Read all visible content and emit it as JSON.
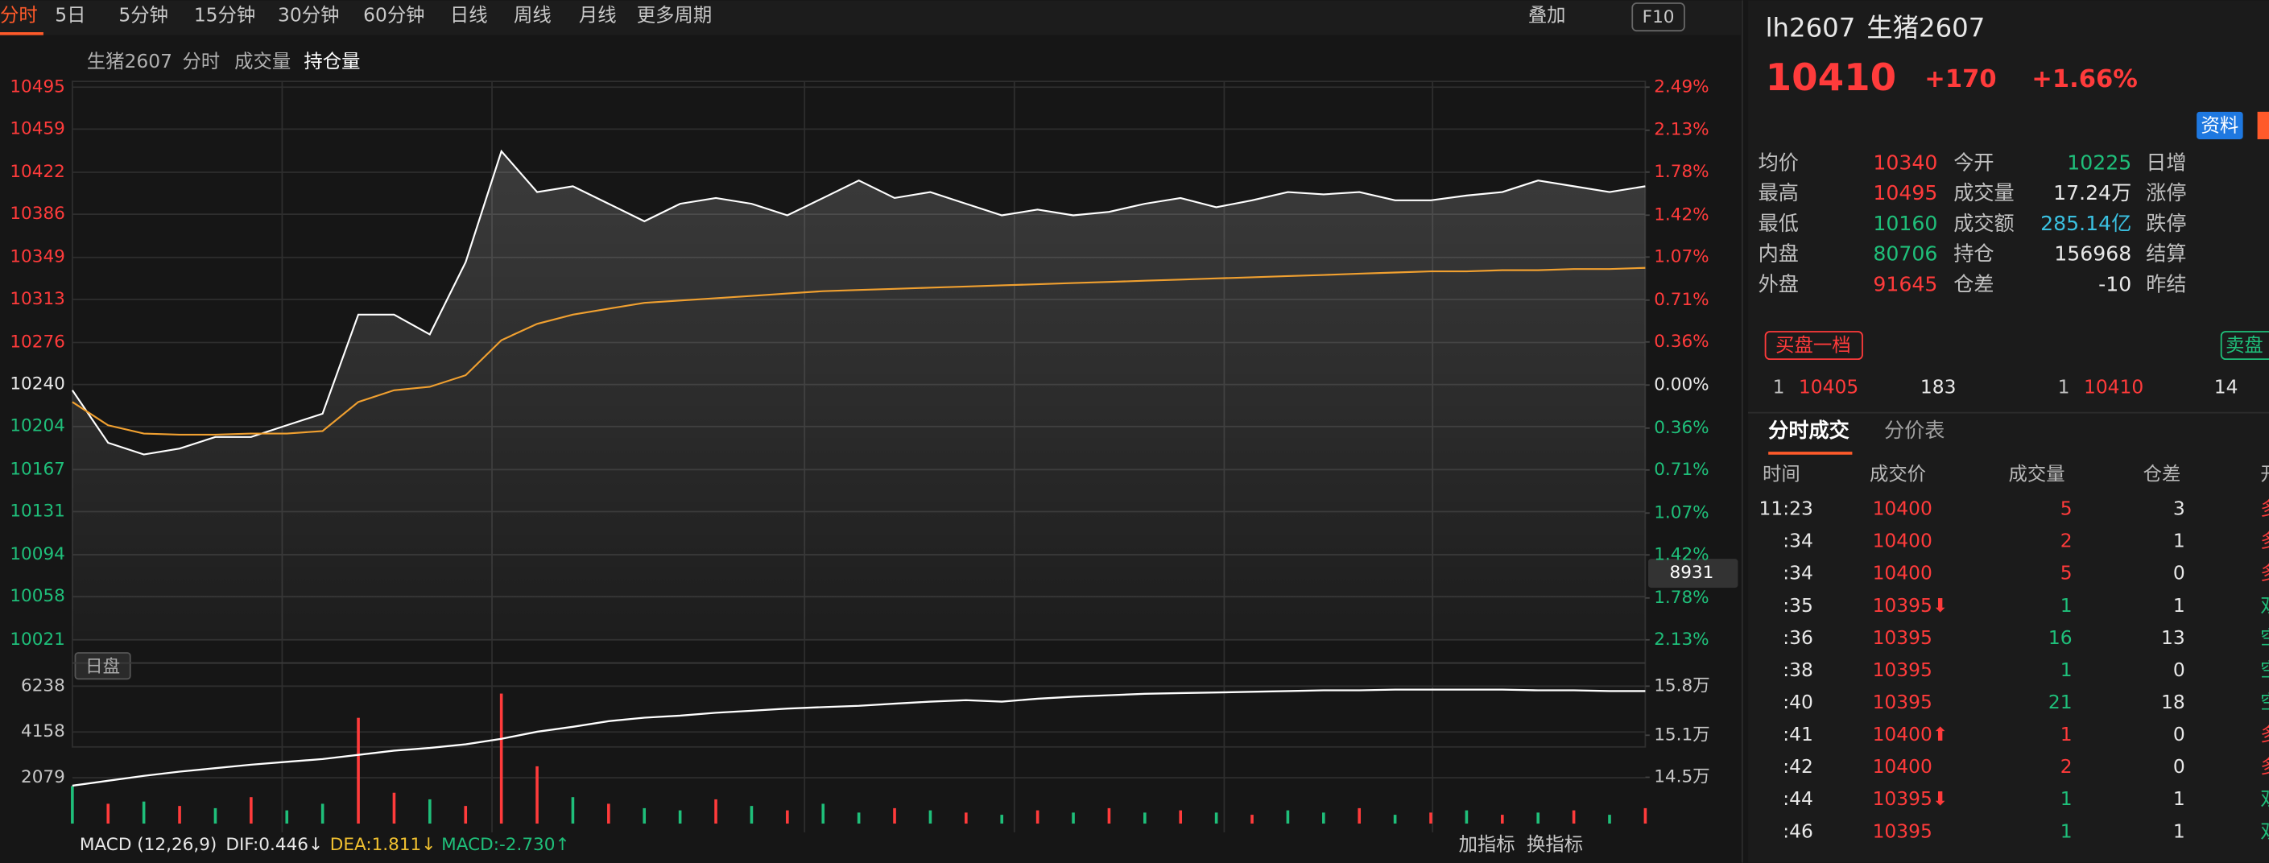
{
  "toolbar": {
    "active": "分时",
    "items": [
      "5日",
      "5分钟",
      "15分钟",
      "30分钟",
      "60分钟",
      "日线",
      "周线",
      "月线",
      "更多周期"
    ],
    "overlay": "叠加",
    "f10": "F10"
  },
  "chart_header": [
    "生猪2607",
    "分时",
    "成交量",
    "持仓量"
  ],
  "session_label": "日盘",
  "crosshair_value": "8931",
  "macd": {
    "name": "MACD (12,26,9)",
    "dif": "DIF:0.446↓",
    "dea": "DEA:1.811↓",
    "macd": "MACD:-2.730↑"
  },
  "indicator_buttons": [
    "加指标",
    "换指标"
  ],
  "chart_data": [
    {
      "type": "line",
      "series": [
        {
          "color": "#ffffff",
          "values": [
            10235,
            10190,
            10180,
            10185,
            10195,
            10195,
            10205,
            10215,
            10300,
            10300,
            10283,
            10345,
            10440,
            10405,
            10410,
            10395,
            10380,
            10395,
            10400,
            10395,
            10385,
            10400,
            10415,
            10400,
            10405,
            10395,
            10385,
            10390,
            10385,
            10388,
            10395,
            10400,
            10392,
            10398,
            10405,
            10403,
            10405,
            10398,
            10398,
            10402,
            10405,
            10415,
            10410,
            10405,
            10410
          ]
        },
        {
          "color": "#f0a030",
          "values": [
            10225,
            10205,
            10198,
            10197,
            10197,
            10198,
            10198,
            10200,
            10225,
            10235,
            10238,
            10248,
            10278,
            10292,
            10300,
            10305,
            10310,
            10312,
            10314,
            10316,
            10318,
            10320,
            10321,
            10322,
            10323,
            10324,
            10325,
            10326,
            10327,
            10328,
            10329,
            10330,
            10331,
            10332,
            10333,
            10334,
            10335,
            10336,
            10337,
            10337,
            10338,
            10338,
            10339,
            10339,
            10340
          ]
        }
      ],
      "ylim": [
        10021,
        10495
      ],
      "yticks": [
        10495,
        10459,
        10422,
        10386,
        10349,
        10313,
        10276,
        10240,
        10204,
        10167,
        10131,
        10094,
        10058,
        10021
      ],
      "y2lim": [
        -2.13,
        2.49
      ],
      "y2ticks": [
        {
          "value": 2.49,
          "label": "2.49%"
        },
        {
          "value": 2.13,
          "label": "2.13%"
        },
        {
          "value": 1.78,
          "label": "1.78%"
        },
        {
          "value": 1.42,
          "label": "1.42%"
        },
        {
          "value": 1.07,
          "label": "1.07%"
        },
        {
          "value": 0.71,
          "label": "0.71%"
        },
        {
          "value": 0.36,
          "label": "0.36%"
        },
        {
          "value": 0,
          "label": "0.00%"
        },
        {
          "value": -0.36,
          "label": "0.36%"
        },
        {
          "value": -0.71,
          "label": "0.71%"
        },
        {
          "value": -1.07,
          "label": "1.07%"
        },
        {
          "value": -1.42,
          "label": "1.42%"
        },
        {
          "value": -1.78,
          "label": "1.78%"
        },
        {
          "value": -2.13,
          "label": "2.13%"
        }
      ],
      "grid": true
    },
    {
      "type": "bar",
      "values": [
        1700,
        900,
        1000,
        800,
        700,
        1200,
        600,
        900,
        4800,
        1400,
        1100,
        800,
        5900,
        2600,
        1200,
        900,
        700,
        600,
        1100,
        800,
        600,
        900,
        500,
        700,
        600,
        500,
        400,
        600,
        500,
        700,
        500,
        600,
        500,
        400,
        600,
        500,
        700,
        400,
        500,
        600,
        400,
        500,
        600,
        400,
        700
      ],
      "colors": [
        "#1fbf7a",
        "#ff3b3b",
        "#1fbf7a",
        "#ff3b3b",
        "#1fbf7a",
        "#ff3b3b",
        "#1fbf7a",
        "#1fbf7a",
        "#ff3b3b",
        "#ff3b3b",
        "#1fbf7a",
        "#ff3b3b",
        "#ff3b3b",
        "#ff3b3b",
        "#1fbf7a",
        "#ff3b3b",
        "#1fbf7a",
        "#1fbf7a",
        "#ff3b3b",
        "#1fbf7a",
        "#ff3b3b",
        "#1fbf7a",
        "#1fbf7a",
        "#ff3b3b",
        "#1fbf7a",
        "#ff3b3b",
        "#1fbf7a",
        "#ff3b3b",
        "#1fbf7a",
        "#ff3b3b",
        "#1fbf7a",
        "#ff3b3b",
        "#1fbf7a",
        "#ff3b3b",
        "#1fbf7a",
        "#1fbf7a",
        "#ff3b3b",
        "#1fbf7a",
        "#ff3b3b",
        "#1fbf7a",
        "#ff3b3b",
        "#1fbf7a",
        "#ff3b3b",
        "#1fbf7a",
        "#ff3b3b"
      ],
      "ylim": [
        0,
        6238
      ],
      "yticks": [
        6238,
        4158,
        2079
      ],
      "series": [
        {
          "color": "#ffffff",
          "axis": "y2",
          "values": [
            14.38,
            14.45,
            14.52,
            14.58,
            14.63,
            14.68,
            14.72,
            14.76,
            14.82,
            14.88,
            14.92,
            14.97,
            15.05,
            15.15,
            15.22,
            15.3,
            15.35,
            15.38,
            15.42,
            15.45,
            15.48,
            15.5,
            15.52,
            15.55,
            15.58,
            15.6,
            15.58,
            15.62,
            15.65,
            15.67,
            15.69,
            15.7,
            15.71,
            15.72,
            15.73,
            15.74,
            15.74,
            15.75,
            15.75,
            15.75,
            15.75,
            15.74,
            15.74,
            15.73,
            15.73
          ]
        }
      ],
      "y2lim": [
        13.84,
        15.8
      ],
      "y2ticks": [
        {
          "value": 15.8,
          "label": "15.8万"
        },
        {
          "value": 15.1,
          "label": "15.1万"
        },
        {
          "value": 14.5,
          "label": "14.5万"
        }
      ]
    }
  ],
  "quote": {
    "symbol": "lh2607",
    "name": "生猪2607",
    "last": "10410",
    "change": "+170",
    "change_pct": "+1.66%",
    "info_button": "资料",
    "stats": [
      [
        "均价",
        "10340",
        "今开",
        "10225",
        "日增"
      ],
      [
        "最高",
        "10495",
        "成交量",
        "17.24万",
        "涨停"
      ],
      [
        "最低",
        "10160",
        "成交额",
        "285.14亿",
        "跌停"
      ],
      [
        "内盘",
        "80706",
        "持仓",
        "156968",
        "结算"
      ],
      [
        "外盘",
        "91645",
        "仓差",
        "-10",
        "昨结"
      ]
    ]
  },
  "order_book": {
    "bid_label": "买盘一档",
    "ask_label": "卖盘",
    "bid": [
      "1",
      "10405",
      "183"
    ],
    "ask": [
      "1",
      "10410",
      "14"
    ]
  },
  "trades": {
    "tabs": [
      "分时成交",
      "分价表"
    ],
    "columns": [
      "时间",
      "成交价",
      "成交量",
      "仓差",
      "开"
    ],
    "rows": [
      [
        "11:23",
        "10400",
        "5",
        "3",
        "多"
      ],
      [
        ":34",
        "10400",
        "2",
        "1",
        "多"
      ],
      [
        ":34",
        "10400",
        "5",
        "0",
        "多"
      ],
      [
        ":35",
        "10395⬇",
        "1",
        "1",
        "双"
      ],
      [
        ":36",
        "10395",
        "16",
        "13",
        "空"
      ],
      [
        ":38",
        "10395",
        "1",
        "0",
        "空"
      ],
      [
        ":40",
        "10395",
        "21",
        "18",
        "空"
      ],
      [
        ":41",
        "10400⬆",
        "1",
        "0",
        "多"
      ],
      [
        ":42",
        "10400",
        "2",
        "0",
        "多"
      ],
      [
        ":44",
        "10395⬇",
        "1",
        "1",
        "双"
      ],
      [
        ":46",
        "10395",
        "1",
        "1",
        "双"
      ]
    ]
  }
}
